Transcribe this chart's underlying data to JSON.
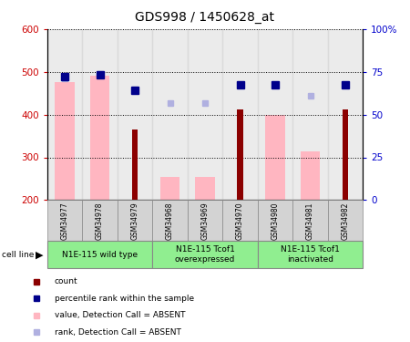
{
  "title": "GDS998 / 1450628_at",
  "samples": [
    "GSM34977",
    "GSM34978",
    "GSM34979",
    "GSM34968",
    "GSM34969",
    "GSM34970",
    "GSM34980",
    "GSM34981",
    "GSM34982"
  ],
  "count_values": [
    null,
    null,
    365,
    null,
    null,
    412,
    null,
    null,
    412
  ],
  "count_color": "#8b0000",
  "value_absent": [
    475,
    490,
    null,
    255,
    255,
    null,
    400,
    313,
    null
  ],
  "value_absent_color": "#ffb6c1",
  "rank_absent": [
    485,
    495,
    458,
    428,
    428,
    470,
    470,
    445,
    470
  ],
  "rank_absent_color": "#b0b0e0",
  "percentile_values": [
    488,
    493,
    457,
    null,
    null,
    470,
    470,
    null,
    470
  ],
  "percentile_color": "#00008b",
  "ylim_left": [
    200,
    600
  ],
  "ylim_right": [
    0,
    100
  ],
  "yticks_left": [
    200,
    300,
    400,
    500,
    600
  ],
  "yticks_right": [
    0,
    25,
    50,
    75,
    100
  ],
  "ylabel_left_color": "#cc0000",
  "ylabel_right_color": "#0000cc",
  "background_sample": "#d3d3d3",
  "group_data": [
    {
      "start": 0,
      "end": 2,
      "label": "N1E-115 wild type"
    },
    {
      "start": 3,
      "end": 5,
      "label": "N1E-115 Tcof1\noverexpressed"
    },
    {
      "start": 6,
      "end": 8,
      "label": "N1E-115 Tcof1\ninactivated"
    }
  ],
  "group_color": "#90ee90",
  "legend_items": [
    {
      "label": "count",
      "color": "#8b0000"
    },
    {
      "label": "percentile rank within the sample",
      "color": "#00008b"
    },
    {
      "label": "value, Detection Call = ABSENT",
      "color": "#ffb6c1"
    },
    {
      "label": "rank, Detection Call = ABSENT",
      "color": "#b0b0e0"
    }
  ]
}
